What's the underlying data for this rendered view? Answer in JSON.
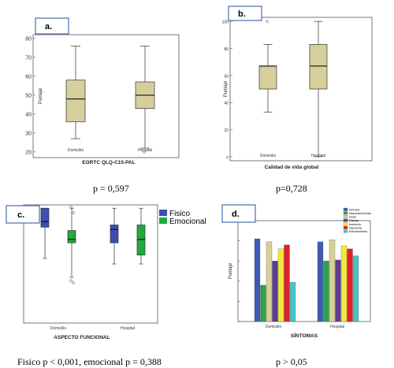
{
  "chart_data": [
    {
      "type": "boxplot",
      "panel_label": "a.",
      "xlabel": "EORTC QLQ-C15-PAL",
      "ylabel": "Puntaje",
      "categories": [
        "Domicilio",
        "Hospital"
      ],
      "ylim": [
        17,
        82
      ],
      "yticks": [
        "20",
        "30",
        "40",
        "50",
        "60",
        "70",
        "80"
      ],
      "color": "#d6cf9c",
      "boxes": [
        {
          "min": 27,
          "q1": 36,
          "median": 48,
          "q3": 58,
          "max": 76,
          "outliers": []
        },
        {
          "min": 22,
          "q1": 43,
          "median": 50,
          "q3": 57,
          "max": 76,
          "outliers": [
            20
          ]
        }
      ],
      "caption": "p = 0,597"
    },
    {
      "type": "boxplot",
      "panel_label": "b.",
      "xlabel": "Calidad de vida global",
      "ylabel": "Puntaje",
      "categories": [
        "Domicilio",
        "Hospital"
      ],
      "ylim": [
        -3,
        103
      ],
      "yticks": [
        "0",
        "20",
        "40",
        "60",
        "80",
        "100"
      ],
      "color": "#d6cf9c",
      "boxes": [
        {
          "min": 33,
          "q1": 50,
          "median": 67,
          "q3": 67,
          "max": 83,
          "outliers": [
            100
          ]
        },
        {
          "min": 0,
          "q1": 50,
          "median": 67,
          "q3": 83,
          "max": 100,
          "outliers": []
        }
      ],
      "caption": "p=0,728"
    },
    {
      "type": "boxplot",
      "panel_label": "c.",
      "xlabel": "ASPECTO FUNCIONAL",
      "categories": [
        "Domicilio",
        "Hospital"
      ],
      "ylim": [
        -3,
        103
      ],
      "legend": [
        {
          "name": "Fisico",
          "color": "#3c4fb5"
        },
        {
          "name": "Emocional",
          "color": "#22aa3a"
        }
      ],
      "legend_position": "top-right",
      "boxes": [
        {
          "group": 0,
          "series": 0,
          "min": 55,
          "q1": 83,
          "median": 88,
          "q3": 100,
          "max": 100,
          "outliers": []
        },
        {
          "group": 0,
          "series": 1,
          "min": 38,
          "q1": 69,
          "median": 72,
          "q3": 80,
          "max": 100,
          "outliers": [
            101,
            96,
            35,
            33
          ]
        },
        {
          "group": 1,
          "series": 0,
          "min": 50,
          "q1": 69,
          "median": 81,
          "q3": 85,
          "max": 100,
          "outliers": []
        },
        {
          "group": 1,
          "series": 1,
          "min": 50,
          "q1": 58,
          "median": 72,
          "q3": 85,
          "max": 100,
          "outliers": []
        }
      ],
      "caption": "Fisico p < 0,001, emocional p = 0,388"
    },
    {
      "type": "bar",
      "panel_label": "d.",
      "xlabel": "SÍNTOMAS",
      "ylabel": "Puntaje",
      "categories": [
        "Domicilio",
        "Hospital"
      ],
      "ylim": [
        0,
        100
      ],
      "legend_position": "top-right",
      "series": [
        {
          "name": "FATIGA",
          "color": "#3d5bb5",
          "values": [
            82,
            79
          ]
        },
        {
          "name": "Náuseas/Vómito",
          "color": "#2ca24a",
          "values": [
            36,
            60
          ]
        },
        {
          "name": "Dolor",
          "color": "#d9d095",
          "values": [
            79,
            81
          ]
        },
        {
          "name": "Disnea",
          "color": "#5c3d8f",
          "values": [
            60,
            61
          ]
        },
        {
          "name": "Insomnio",
          "color": "#f2ea3a",
          "values": [
            72,
            75
          ]
        },
        {
          "name": "Hiporexia",
          "color": "#e32028",
          "values": [
            76,
            72
          ]
        },
        {
          "name": "Estreñimiento",
          "color": "#45c6c6",
          "values": [
            39,
            65
          ]
        }
      ],
      "caption": "p > 0,05"
    }
  ]
}
